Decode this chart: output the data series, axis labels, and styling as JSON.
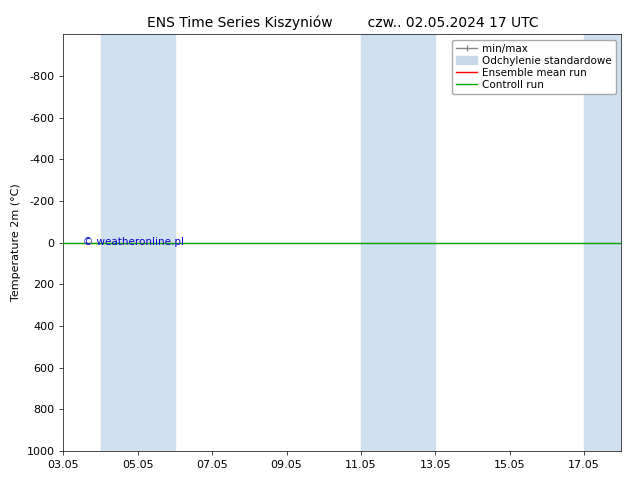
{
  "title_left": "ENS Time Series Kiszyniów",
  "title_right": "czw.. 02.05.2024 17 UTC",
  "ylabel": "Temperature 2m (°C)",
  "ylim": [
    -1000,
    1000
  ],
  "yticks": [
    -800,
    -600,
    -400,
    -200,
    0,
    200,
    400,
    600,
    800,
    1000
  ],
  "xtick_labels": [
    "03.05",
    "05.05",
    "07.05",
    "09.05",
    "11.05",
    "13.05",
    "15.05",
    "17.05"
  ],
  "xtick_positions": [
    0,
    2,
    4,
    6,
    8,
    10,
    12,
    14
  ],
  "shaded_columns": [
    {
      "start": 1,
      "end": 2
    },
    {
      "start": 2,
      "end": 3
    },
    {
      "start": 8,
      "end": 9
    },
    {
      "start": 9,
      "end": 10
    },
    {
      "start": 14,
      "end": 15
    }
  ],
  "shaded_color": "#cfe0f0",
  "control_run_y": 0,
  "ensemble_mean_y": 0,
  "control_run_color": "#00aa00",
  "ensemble_mean_color": "#ff0000",
  "minmax_color_line": "#888888",
  "std_color_fill": "#c8d8e8",
  "legend_labels": [
    "min/max",
    "Odchylenie standardowe",
    "Ensemble mean run",
    "Controll run"
  ],
  "legend_line_colors": [
    "#888888",
    "#aabbcc",
    "#ff0000",
    "#00aa00"
  ],
  "watermark": "© weatheronline.pl",
  "watermark_color": "#0000cc",
  "background_color": "#ffffff",
  "plot_bg_color": "#ffffff",
  "title_fontsize": 10,
  "axis_fontsize": 8,
  "tick_fontsize": 8,
  "legend_fontsize": 7.5
}
